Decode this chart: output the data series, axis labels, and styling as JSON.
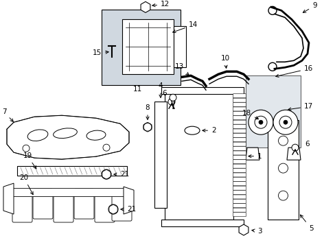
{
  "bg_color": "#ffffff",
  "line_color": "#000000",
  "fig_width": 4.89,
  "fig_height": 3.6,
  "dpi": 100,
  "shaded_fill": "#d0d8e0"
}
